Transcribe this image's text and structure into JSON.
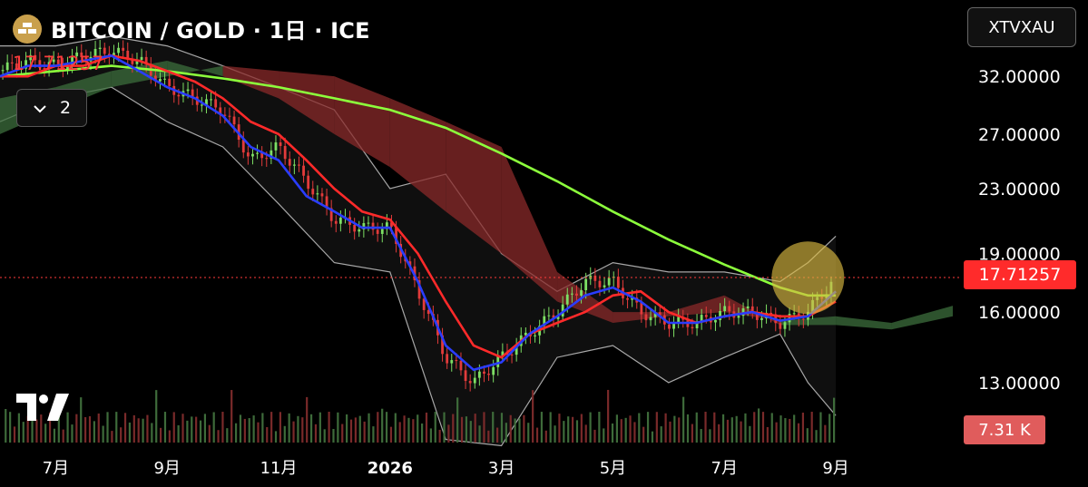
{
  "header": {
    "title": "BITCOIN / GOLD · 1日 · ICE",
    "symbol": "XTVXAU",
    "last_price": "17.71257",
    "indicator_count": "2",
    "volume_label": "7.31 K"
  },
  "colors": {
    "background": "#000000",
    "up_candle": "#7ddf64",
    "down_candle": "#e23b3b",
    "tenkan": "#2a3dff",
    "kijun": "#ff2a2a",
    "long_ma": "#8cff3c",
    "bollinger": "#cfcfcf",
    "cloud_bear": "#8a2a2a",
    "cloud_bull": "#3c6e3c",
    "highlight": "#d9b840"
  },
  "chart_data": {
    "type": "line",
    "title": "BITCOIN / GOLD · 1日 · ICE",
    "price_axis": {
      "ticks": [
        32,
        27,
        23,
        19,
        16,
        13
      ],
      "tick_labels": [
        "32.00000",
        "27.00000",
        "23.00000",
        "19.00000",
        "16.00000",
        "13.00000"
      ],
      "range": [
        10.9,
        36
      ],
      "scale": "log"
    },
    "x_axis": {
      "labels": [
        "7月",
        "9月",
        "11月",
        "2026",
        "3月",
        "5月",
        "7月",
        "9月"
      ],
      "label_months": [
        0,
        2,
        4,
        6,
        8,
        10,
        12,
        14
      ],
      "range_months": [
        -1.0,
        16.1
      ]
    },
    "last_price": 17.71257,
    "volume_last": "7.31 K",
    "series": [
      {
        "kind": "price",
        "x_months": [
          -1.0,
          -0.5,
          0.0,
          0.5,
          1.0,
          1.5,
          2.0,
          2.5,
          3.0,
          3.5,
          4.0,
          4.5,
          5.0,
          5.5,
          6.0,
          6.5,
          7.0,
          7.5,
          8.0,
          8.5,
          9.0,
          9.5,
          10.0,
          10.5,
          11.0,
          11.5,
          12.0,
          12.5,
          13.0,
          13.5,
          14.0
        ],
        "values": [
          32.5,
          33.5,
          33.0,
          34.0,
          34.5,
          33.5,
          31.0,
          30.0,
          29.0,
          25.0,
          26.0,
          23.5,
          21.0,
          20.5,
          20.5,
          17.0,
          14.0,
          13.0,
          14.0,
          15.0,
          16.0,
          17.5,
          17.5,
          16.0,
          15.5,
          15.5,
          16.0,
          16.0,
          15.5,
          16.0,
          17.7
        ]
      },
      {
        "kind": "tenkan",
        "x_months": [
          -1.0,
          -0.5,
          0.0,
          0.5,
          1.0,
          1.5,
          2.0,
          2.5,
          3.0,
          3.5,
          4.0,
          4.5,
          5.0,
          5.5,
          6.0,
          6.5,
          7.0,
          7.5,
          8.0,
          8.5,
          9.0,
          9.5,
          10.0,
          10.5,
          11.0,
          11.5,
          12.0,
          12.5,
          13.0,
          13.5,
          14.0
        ],
        "values": [
          32.0,
          33.0,
          33.0,
          33.5,
          34.0,
          32.5,
          31.0,
          30.0,
          28.5,
          26.0,
          25.0,
          22.5,
          21.5,
          20.5,
          20.5,
          17.5,
          14.5,
          13.5,
          13.8,
          15.0,
          15.8,
          16.8,
          17.2,
          16.5,
          15.5,
          15.5,
          15.8,
          16.0,
          15.6,
          15.8,
          17.0
        ]
      },
      {
        "kind": "kijun",
        "x_months": [
          -1.0,
          -0.5,
          0.0,
          0.5,
          1.0,
          1.5,
          2.0,
          2.5,
          3.0,
          3.5,
          4.0,
          4.5,
          5.0,
          5.5,
          6.0,
          6.5,
          7.0,
          7.5,
          8.0,
          8.5,
          9.0,
          9.5,
          10.0,
          10.5,
          11.0,
          11.5,
          12.0,
          12.5,
          13.0,
          13.5,
          14.0
        ],
        "values": [
          32.0,
          32.0,
          33.0,
          33.0,
          34.0,
          33.5,
          32.5,
          31.5,
          30.0,
          28.0,
          27.0,
          25.0,
          23.0,
          21.5,
          21.0,
          19.0,
          16.5,
          14.5,
          14.0,
          15.0,
          15.5,
          16.0,
          16.8,
          17.0,
          16.0,
          15.5,
          15.8,
          16.0,
          15.8,
          15.8,
          16.5
        ]
      },
      {
        "kind": "long_ma",
        "x_months": [
          -1.0,
          0.0,
          1.0,
          2.0,
          3.0,
          4.0,
          5.0,
          6.0,
          7.0,
          8.0,
          9.0,
          10.0,
          11.0,
          12.0,
          13.0,
          13.5,
          14.0
        ],
        "values": [
          32.0,
          32.5,
          33.0,
          32.5,
          31.8,
          31.0,
          30.0,
          29.0,
          27.5,
          25.5,
          23.5,
          21.5,
          19.8,
          18.4,
          17.2,
          16.8,
          16.8
        ]
      },
      {
        "kind": "bollinger_upper",
        "x_months": [
          -1.0,
          0.0,
          1.0,
          2.0,
          3.0,
          4.0,
          5.0,
          6.0,
          7.0,
          8.0,
          9.0,
          10.0,
          11.0,
          12.0,
          13.0,
          13.5,
          14.0
        ],
        "values": [
          35.0,
          35.0,
          36.0,
          35.0,
          33.0,
          31.0,
          29.0,
          23.0,
          24.0,
          19.0,
          17.0,
          18.5,
          18.0,
          18.0,
          17.5,
          18.5,
          20.0
        ]
      },
      {
        "kind": "bollinger_lower",
        "x_months": [
          -1.0,
          0.0,
          1.0,
          2.0,
          3.0,
          4.0,
          5.0,
          6.0,
          7.0,
          8.0,
          9.0,
          10.0,
          11.0,
          12.0,
          13.0,
          13.5,
          14.0
        ],
        "values": [
          28.0,
          30.0,
          31.0,
          28.0,
          26.0,
          22.0,
          18.5,
          18.0,
          11.0,
          10.8,
          14.0,
          14.5,
          13.0,
          14.0,
          15.0,
          13.0,
          11.8
        ]
      },
      {
        "kind": "cloud_a",
        "x_months": [
          -1.0,
          0.0,
          1.0,
          2.0,
          3.0,
          4.0,
          5.0,
          6.0,
          7.0,
          8.0,
          9.0,
          10.0,
          11.0,
          12.0,
          13.0,
          14.0,
          15.0,
          16.1
        ],
        "values": [
          30.0,
          31.0,
          32.5,
          33.5,
          32.0,
          30.0,
          27.0,
          24.5,
          21.5,
          19.0,
          16.5,
          15.5,
          15.8,
          16.0,
          15.6,
          15.8,
          15.5,
          16.3
        ]
      },
      {
        "kind": "cloud_b",
        "x_months": [
          -1.0,
          0.0,
          1.0,
          2.0,
          3.0,
          4.0,
          5.0,
          6.0,
          7.0,
          8.0,
          9.0,
          10.0,
          11.0,
          12.0,
          13.0,
          14.0,
          15.0,
          16.1
        ],
        "values": [
          27.0,
          29.0,
          31.0,
          32.0,
          33.0,
          32.5,
          32.0,
          30.0,
          28.0,
          26.0,
          18.0,
          16.0,
          16.0,
          16.8,
          15.4,
          15.4,
          15.2,
          15.8
        ]
      }
    ]
  }
}
